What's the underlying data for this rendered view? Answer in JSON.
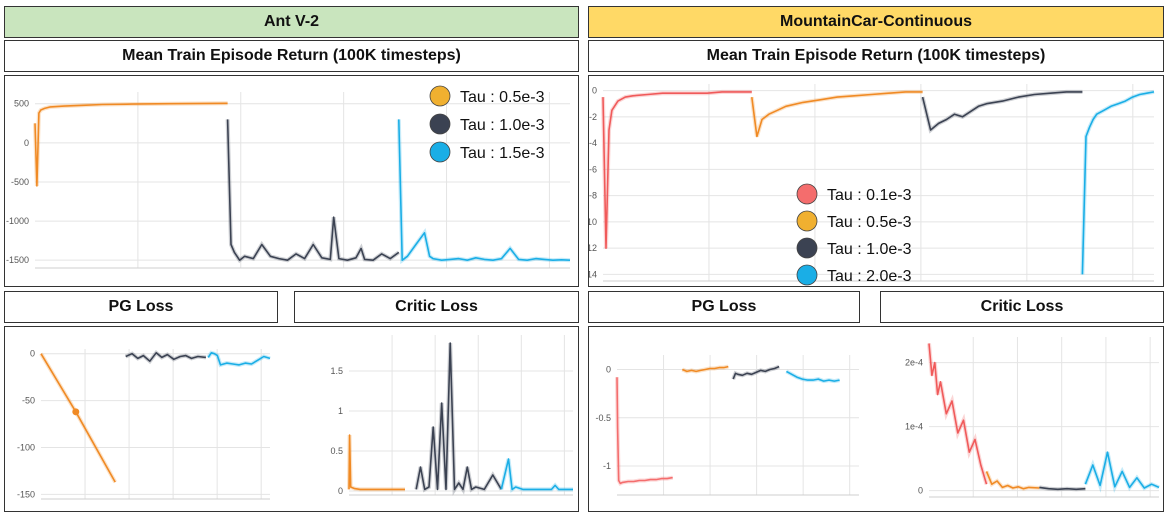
{
  "left": {
    "env_title": "Ant V-2",
    "return_title": "Mean Train Episode Return (100K timesteps)",
    "pg_title": "PG Loss",
    "critic_title": "Critic Loss",
    "header_color": "#c9e5be"
  },
  "right": {
    "env_title": "MountainCar-Continuous",
    "return_title": "Mean Train Episode Return (100K timesteps)",
    "pg_title": "PG Loss",
    "critic_title": "Critic Loss",
    "header_color": "#ffd966"
  },
  "chart_data": [
    {
      "id": "ant_return",
      "type": "line",
      "title": "Mean Train Episode Return (100K timesteps)",
      "ylim": [
        -1600,
        650
      ],
      "yticks": [
        500,
        0,
        -500,
        -1000,
        -1500
      ],
      "ytick_labels": [
        "500",
        "0",
        "-500",
        "-1000",
        "-1500"
      ],
      "grid": true,
      "legend": {
        "placement": "top-right",
        "entries": [
          {
            "label": "Tau : 0.5e-3",
            "color": "#f0b030"
          },
          {
            "label": "Tau : 1.0e-3",
            "color": "#3b4252"
          },
          {
            "label": "Tau : 1.5e-3",
            "color": "#1aaee6"
          }
        ]
      },
      "series": [
        {
          "name": "Tau : 0.5e-3",
          "color": "#f08a24",
          "x": [
            0,
            0.01,
            0.02,
            0.03,
            0.05,
            0.08,
            0.15,
            0.25,
            0.35,
            0.5,
            0.7,
            1.0
          ],
          "y": [
            250,
            -550,
            380,
            420,
            440,
            460,
            470,
            480,
            490,
            495,
            500,
            505
          ]
        },
        {
          "name": "Tau : 1.0e-3",
          "color": "#3b4252",
          "x": [
            0,
            0.02,
            0.04,
            0.07,
            0.1,
            0.15,
            0.2,
            0.25,
            0.3,
            0.35,
            0.4,
            0.45,
            0.5,
            0.55,
            0.6,
            0.62,
            0.65,
            0.7,
            0.75,
            0.78,
            0.8,
            0.85,
            0.9,
            0.95,
            1.0
          ],
          "y": [
            300,
            -1300,
            -1400,
            -1500,
            -1450,
            -1480,
            -1300,
            -1450,
            -1480,
            -1500,
            -1420,
            -1480,
            -1300,
            -1470,
            -1490,
            -950,
            -1480,
            -1500,
            -1470,
            -1350,
            -1490,
            -1500,
            -1420,
            -1480,
            -1400
          ]
        },
        {
          "name": "Tau : 1.5e-3",
          "color": "#1aaee6",
          "x": [
            0,
            0.02,
            0.05,
            0.1,
            0.15,
            0.18,
            0.2,
            0.25,
            0.3,
            0.35,
            0.4,
            0.45,
            0.5,
            0.55,
            0.6,
            0.65,
            0.7,
            0.75,
            0.8,
            0.85,
            0.9,
            0.95,
            1.0
          ],
          "y": [
            300,
            -1500,
            -1450,
            -1300,
            -1150,
            -1450,
            -1480,
            -1500,
            -1490,
            -1480,
            -1500,
            -1470,
            -1490,
            -1500,
            -1480,
            -1350,
            -1490,
            -1500,
            -1480,
            -1490,
            -1500,
            -1495,
            -1500
          ]
        }
      ]
    },
    {
      "id": "mc_return",
      "type": "line",
      "title": "Mean Train Episode Return (100K timesteps)",
      "ylim": [
        -14.5,
        0.5
      ],
      "yticks": [
        0,
        -2,
        -4,
        -6,
        -8,
        -10,
        -12,
        -14
      ],
      "ytick_labels": [
        "0",
        "-2",
        "-4",
        "-6",
        "-8",
        "-10",
        "-12",
        "-14"
      ],
      "grid": true,
      "legend": {
        "placement": "bottom-center",
        "entries": [
          {
            "label": "Tau : 0.1e-3",
            "color": "#f46d6d"
          },
          {
            "label": "Tau : 0.5e-3",
            "color": "#f0b030"
          },
          {
            "label": "Tau : 1.0e-3",
            "color": "#3b4252"
          },
          {
            "label": "Tau : 2.0e-3",
            "color": "#1aaee6"
          }
        ]
      },
      "series": [
        {
          "name": "Tau : 0.1e-3",
          "color": "#f05a5a",
          "x": [
            0,
            0.02,
            0.04,
            0.06,
            0.1,
            0.15,
            0.2,
            0.3,
            0.4,
            0.5,
            0.6,
            0.7,
            0.8,
            0.9,
            1.0
          ],
          "y": [
            -0.5,
            -12,
            -3,
            -1.5,
            -0.8,
            -0.5,
            -0.4,
            -0.3,
            -0.2,
            -0.2,
            -0.2,
            -0.2,
            -0.1,
            -0.1,
            -0.1
          ]
        },
        {
          "name": "Tau : 0.5e-3",
          "color": "#f08a24",
          "x": [
            0,
            0.03,
            0.06,
            0.1,
            0.15,
            0.2,
            0.3,
            0.4,
            0.5,
            0.6,
            0.7,
            0.8,
            0.9,
            1.0
          ],
          "y": [
            -0.5,
            -3.5,
            -2.2,
            -1.8,
            -1.5,
            -1.2,
            -0.9,
            -0.7,
            -0.5,
            -0.4,
            -0.3,
            -0.2,
            -0.1,
            -0.1
          ]
        },
        {
          "name": "Tau : 1.0e-3",
          "color": "#3b4252",
          "x": [
            0,
            0.05,
            0.1,
            0.15,
            0.2,
            0.25,
            0.3,
            0.35,
            0.4,
            0.5,
            0.6,
            0.7,
            0.8,
            0.9,
            1.0
          ],
          "y": [
            -0.5,
            -3,
            -2.5,
            -2.2,
            -1.8,
            -2,
            -1.6,
            -1.2,
            -1,
            -0.8,
            -0.5,
            -0.3,
            -0.2,
            -0.1,
            -0.1
          ]
        },
        {
          "name": "Tau : 2.0e-3",
          "color": "#1aaee6",
          "x": [
            0,
            0.05,
            0.1,
            0.15,
            0.2,
            0.3,
            0.4,
            0.5,
            0.6,
            0.7,
            0.8,
            0.9,
            1.0
          ],
          "y": [
            -14,
            -3.5,
            -2.8,
            -2.2,
            -1.8,
            -1.5,
            -1.2,
            -1,
            -0.8,
            -0.5,
            -0.3,
            -0.2,
            -0.1
          ]
        }
      ]
    },
    {
      "id": "ant_pg",
      "type": "line",
      "title": "PG Loss",
      "ylim": [
        -155,
        5
      ],
      "yticks": [
        0,
        -50,
        -100,
        -150
      ],
      "ytick_labels": [
        "0",
        "-50",
        "-100",
        "-150"
      ],
      "grid": true,
      "series": [
        {
          "name": "",
          "color": "#f08a24",
          "x": [
            0,
            0.38,
            0.81
          ],
          "y": [
            0,
            -62,
            -137
          ],
          "marker_index": 1
        },
        {
          "name": "",
          "color": "#3b4252",
          "x": [
            0,
            0.08,
            0.15,
            0.22,
            0.3,
            0.38,
            0.45,
            0.52,
            0.6,
            0.68,
            0.75,
            0.82,
            0.9,
            1.0
          ],
          "y": [
            -3,
            0,
            -5,
            -2,
            -8,
            1,
            -4,
            -1,
            -6,
            -3,
            -2,
            -5,
            -3,
            -4
          ]
        },
        {
          "name": "",
          "color": "#1aaee6",
          "x": [
            0,
            0.05,
            0.1,
            0.15,
            0.2,
            0.3,
            0.4,
            0.5,
            0.6,
            0.7,
            0.8,
            0.9,
            1.0
          ],
          "y": [
            -4,
            1,
            0,
            -2,
            -12,
            -10,
            -11,
            -12,
            -10,
            -11,
            -7,
            -3,
            -5
          ]
        }
      ]
    },
    {
      "id": "ant_critic",
      "type": "line",
      "title": "Critic Loss",
      "ylim": [
        -0.05,
        1.95
      ],
      "yticks": [
        0,
        0.5,
        1,
        1.5
      ],
      "ytick_labels": [
        "0",
        "0.5",
        "1",
        "1.5"
      ],
      "grid": true,
      "series": [
        {
          "name": "",
          "color": "#f08a24",
          "x": [
            0,
            0.01,
            0.03,
            0.1,
            0.2,
            0.4,
            0.6,
            0.8,
            1.0
          ],
          "y": [
            0.02,
            0.7,
            0.05,
            0.03,
            0.02,
            0.02,
            0.02,
            0.02,
            0.02
          ]
        },
        {
          "name": "",
          "color": "#3b4252",
          "x": [
            0,
            0.05,
            0.1,
            0.15,
            0.2,
            0.25,
            0.3,
            0.35,
            0.4,
            0.45,
            0.5,
            0.55,
            0.6,
            0.65,
            0.7,
            0.8,
            0.9,
            1.0
          ],
          "y": [
            0.02,
            0.3,
            0.02,
            0.05,
            0.8,
            0.02,
            1.1,
            0.02,
            1.85,
            0.02,
            0.1,
            0.02,
            0.3,
            0.02,
            0.05,
            0.02,
            0.2,
            0.02
          ]
        },
        {
          "name": "",
          "color": "#1aaee6",
          "x": [
            0,
            0.1,
            0.15,
            0.2,
            0.3,
            0.4,
            0.6,
            0.7,
            0.75,
            0.8,
            1.0
          ],
          "y": [
            0.02,
            0.4,
            0.02,
            0.05,
            0.02,
            0.02,
            0.02,
            0.02,
            0.07,
            0.02,
            0.02
          ]
        }
      ]
    },
    {
      "id": "mc_pg",
      "type": "line",
      "title": "PG Loss",
      "ylim": [
        -1.3,
        0.15
      ],
      "yticks": [
        0,
        -0.5,
        -1
      ],
      "ytick_labels": [
        "0",
        "-0.5",
        "-1"
      ],
      "grid": true,
      "series": [
        {
          "name": "",
          "color": "#f46d6d",
          "x": [
            0,
            0.01,
            0.03,
            0.06,
            0.1,
            0.2,
            0.3,
            0.4,
            0.5,
            0.6,
            0.7,
            0.8,
            0.9,
            1.0
          ],
          "y": [
            -0.08,
            -0.6,
            -1.15,
            -1.18,
            -1.17,
            -1.16,
            -1.16,
            -1.15,
            -1.15,
            -1.14,
            -1.14,
            -1.13,
            -1.13,
            -1.12
          ]
        },
        {
          "name": "",
          "color": "#f08a24",
          "x": [
            0,
            0.1,
            0.2,
            0.3,
            0.4,
            0.5,
            0.6,
            0.7,
            0.8,
            0.9,
            1.0
          ],
          "y": [
            0,
            -0.02,
            -0.01,
            -0.02,
            -0.01,
            0,
            0.01,
            0.01,
            0.02,
            0.02,
            0.03
          ]
        },
        {
          "name": "",
          "color": "#3b4252",
          "x": [
            0,
            0.05,
            0.1,
            0.2,
            0.3,
            0.4,
            0.5,
            0.6,
            0.7,
            0.8,
            0.9,
            1.0
          ],
          "y": [
            -0.1,
            -0.04,
            -0.05,
            -0.06,
            -0.04,
            -0.05,
            -0.03,
            -0.01,
            -0.02,
            0,
            0.01,
            0.03
          ]
        },
        {
          "name": "",
          "color": "#1aaee6",
          "x": [
            0,
            0.1,
            0.2,
            0.3,
            0.4,
            0.5,
            0.6,
            0.7,
            0.8,
            0.9,
            1.0
          ],
          "y": [
            -0.02,
            -0.05,
            -0.08,
            -0.1,
            -0.11,
            -0.11,
            -0.1,
            -0.12,
            -0.11,
            -0.12,
            -0.11
          ]
        }
      ]
    },
    {
      "id": "mc_critic",
      "type": "line",
      "title": "Critic Loss",
      "ylim": [
        -1e-05,
        0.00024
      ],
      "yticks": [
        0,
        0.0001,
        0.0002
      ],
      "ytick_labels": [
        "0",
        "1e-4",
        "2e-4"
      ],
      "grid": true,
      "series": [
        {
          "name": "",
          "color": "#f05a5a",
          "x": [
            0,
            0.05,
            0.1,
            0.15,
            0.2,
            0.3,
            0.4,
            0.5,
            0.6,
            0.7,
            0.8,
            0.9,
            1.0
          ],
          "y": [
            0.00023,
            0.00018,
            0.0002,
            0.00015,
            0.00017,
            0.00012,
            0.00014,
            9e-05,
            0.00011,
            6e-05,
            8e-05,
            4e-05,
            1e-05
          ]
        },
        {
          "name": "",
          "color": "#f08a24",
          "x": [
            0,
            0.1,
            0.2,
            0.3,
            0.4,
            0.5,
            0.6,
            0.7,
            0.8,
            1.0
          ],
          "y": [
            3e-05,
            1e-05,
            1.5e-05,
            5e-06,
            8e-06,
            4e-06,
            6e-06,
            3e-06,
            5e-06,
            4e-06
          ]
        },
        {
          "name": "",
          "color": "#3b4252",
          "x": [
            0,
            0.2,
            0.4,
            0.6,
            0.8,
            1.0
          ],
          "y": [
            5e-06,
            3e-06,
            2e-06,
            3e-06,
            2e-06,
            3e-06
          ]
        },
        {
          "name": "",
          "color": "#1aaee6",
          "x": [
            0,
            0.1,
            0.2,
            0.3,
            0.4,
            0.5,
            0.6,
            0.7,
            0.8,
            0.9,
            1.0
          ],
          "y": [
            1e-05,
            4e-05,
            8e-06,
            6e-05,
            6e-06,
            3e-05,
            5e-06,
            2e-05,
            4e-06,
            1e-05,
            5e-06
          ]
        }
      ]
    }
  ]
}
